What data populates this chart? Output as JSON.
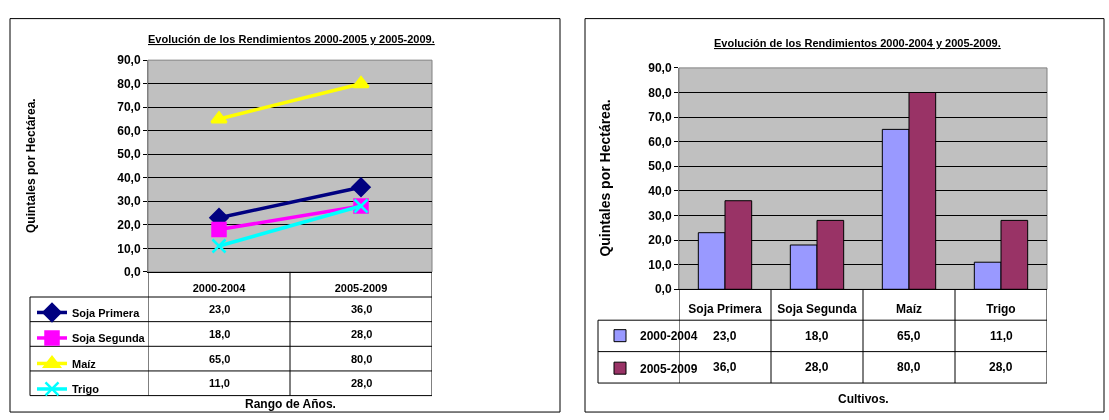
{
  "chart_data": [
    {
      "type": "line",
      "title": "Evolución de los Rendimientos 2000-2005 y 2005-2009.",
      "xlabel": "Rango de Años.",
      "ylabel": "Quintales por Hectárea.",
      "categories": [
        "2000-2004",
        "2005-2009"
      ],
      "series": [
        {
          "name": "Soja Primera",
          "color": "#000080",
          "marker": "diamond",
          "values": [
            23,
            36
          ],
          "value_labels": [
            "23,0",
            "36,0"
          ]
        },
        {
          "name": "Soja Segunda",
          "color": "#ff00ff",
          "marker": "square",
          "values": [
            18,
            28
          ],
          "value_labels": [
            "18,0",
            "28,0"
          ]
        },
        {
          "name": "Maíz",
          "color": "#ffff00",
          "marker": "triangle",
          "values": [
            65,
            80
          ],
          "value_labels": [
            "65,0",
            "80,0"
          ]
        },
        {
          "name": "Trigo",
          "color": "#00ffff",
          "marker": "cross",
          "values": [
            11,
            28
          ],
          "value_labels": [
            "11,0",
            "28,0"
          ]
        }
      ],
      "ylim": [
        0,
        90
      ],
      "yticks": [
        {
          "value": 0,
          "label": "0,0"
        },
        {
          "value": 10,
          "label": "10,0"
        },
        {
          "value": 20,
          "label": "20,0"
        },
        {
          "value": 30,
          "label": "30,0"
        },
        {
          "value": 40,
          "label": "40,0"
        },
        {
          "value": 50,
          "label": "50,0"
        },
        {
          "value": 60,
          "label": "60,0"
        },
        {
          "value": 70,
          "label": "70,0"
        },
        {
          "value": 80,
          "label": "80,0"
        },
        {
          "value": 90,
          "label": "90,0"
        }
      ],
      "grid": "y",
      "legend": "bottom left",
      "line_style": "solid"
    },
    {
      "type": "bar",
      "title": "Evolución de los Rendimientos 2000-2004 y 2005-2009.",
      "xlabel": "Cultivos.",
      "ylabel": "Quintales por Hectárea.",
      "categories": [
        "Soja Primera",
        "Soja Segunda",
        "Maíz",
        "Trigo"
      ],
      "series": [
        {
          "name": "2000-2004",
          "color": "#9999ff",
          "values": [
            23,
            18,
            65,
            11
          ],
          "value_labels": [
            "23,0",
            "18,0",
            "65,0",
            "11,0"
          ]
        },
        {
          "name": "2005-2009",
          "color": "#993366",
          "values": [
            36,
            28,
            80,
            28
          ],
          "value_labels": [
            "36,0",
            "28,0",
            "80,0",
            "28,0"
          ]
        }
      ],
      "ylim": [
        0,
        90
      ],
      "yticks": [
        {
          "value": 0,
          "label": "0,0"
        },
        {
          "value": 10,
          "label": "10,0"
        },
        {
          "value": 20,
          "label": "20,0"
        },
        {
          "value": 30,
          "label": "30,0"
        },
        {
          "value": 40,
          "label": "40,0"
        },
        {
          "value": 50,
          "label": "50,0"
        },
        {
          "value": 60,
          "label": "60,0"
        },
        {
          "value": 70,
          "label": "70,0"
        },
        {
          "value": 80,
          "label": "80,0"
        },
        {
          "value": 90,
          "label": "90,0"
        }
      ],
      "grid": "y",
      "legend": "bottom left"
    }
  ]
}
